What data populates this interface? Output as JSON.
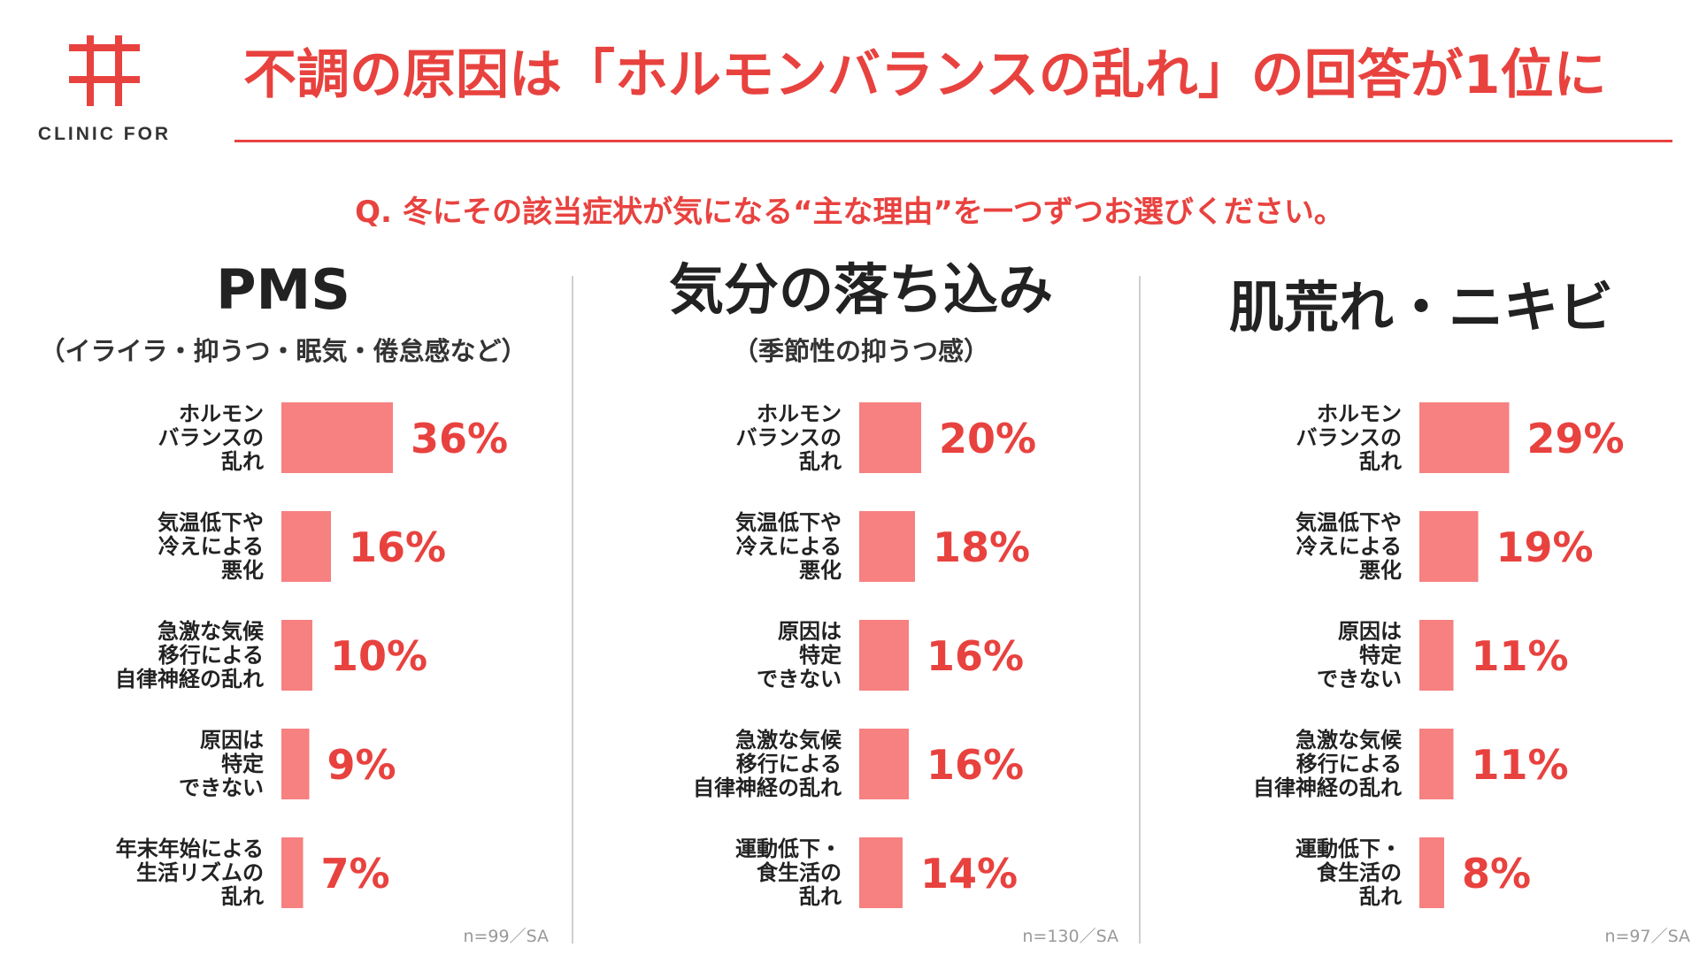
{
  "brand": {
    "logo_text": "CLINIC FOR",
    "accent_color": "#e8423f",
    "bar_color": "#f78080"
  },
  "title": "不調の原因は「ホルモンバランスの乱れ」の回答が1位に",
  "question": "Q. 冬にその該当症状が気になる“主な理由”を一つずつお選びください。",
  "chart_data": [
    {
      "type": "bar",
      "orientation": "horizontal",
      "title": "PMS",
      "subtitle": "（イライラ・抑うつ・眠気・倦怠感など）",
      "categories": [
        "ホルモン\nバランスの\n乱れ",
        "気温低下や\n冷えによる\n悪化",
        "急激な気候\n移行による\n自律神経の乱れ",
        "原因は\n特定\nできない",
        "年末年始による\n生活リズムの\n乱れ"
      ],
      "values": [
        36,
        16,
        10,
        9,
        7
      ],
      "value_labels": [
        "36%",
        "16%",
        "10%",
        "9%",
        "7%"
      ],
      "unit": "%",
      "note": "n=99／SA"
    },
    {
      "type": "bar",
      "orientation": "horizontal",
      "title": "気分の落ち込み",
      "subtitle": "（季節性の抑うつ感）",
      "categories": [
        "ホルモン\nバランスの\n乱れ",
        "気温低下や\n冷えによる\n悪化",
        "原因は\n特定\nできない",
        "急激な気候\n移行による\n自律神経の乱れ",
        "運動低下・\n食生活の\n乱れ"
      ],
      "values": [
        20,
        18,
        16,
        16,
        14
      ],
      "value_labels": [
        "20%",
        "18%",
        "16%",
        "16%",
        "14%"
      ],
      "unit": "%",
      "note": "n=130／SA"
    },
    {
      "type": "bar",
      "orientation": "horizontal",
      "title": "肌荒れ・ニキビ",
      "subtitle": "",
      "categories": [
        "ホルモン\nバランスの\n乱れ",
        "気温低下や\n冷えによる\n悪化",
        "原因は\n特定\nできない",
        "急激な気候\n移行による\n自律神経の乱れ",
        "運動低下・\n食生活の\n乱れ"
      ],
      "values": [
        29,
        19,
        11,
        11,
        8
      ],
      "value_labels": [
        "29%",
        "19%",
        "11%",
        "11%",
        "8%"
      ],
      "unit": "%",
      "note": "n=97／SA"
    }
  ]
}
